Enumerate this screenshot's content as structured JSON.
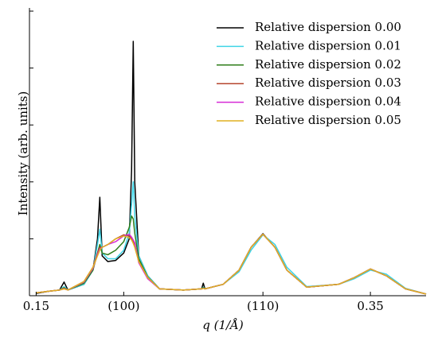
{
  "chart_data": {
    "type": "line",
    "xlabel": "q (1/Å)",
    "ylabel": "Intensity (arb. units)",
    "x": [
      0.15,
      0.158,
      0.164,
      0.1667,
      0.169,
      0.1786,
      0.184,
      0.1867,
      0.1881,
      0.1895,
      0.1929,
      0.1976,
      0.2024,
      0.2057,
      0.2071,
      0.2081,
      0.209,
      0.2114,
      0.2167,
      0.2238,
      0.2381,
      0.249,
      0.25,
      0.251,
      0.2619,
      0.2714,
      0.2786,
      0.2857,
      0.2929,
      0.3,
      0.3119,
      0.331,
      0.3405,
      0.35,
      0.3595,
      0.371,
      0.3833
    ],
    "series": [
      {
        "name": "Relative dispersion 0.00",
        "color": "#000000",
        "values": [
          0.04,
          0.08,
          0.1,
          0.24,
          0.1,
          0.2,
          0.45,
          1.0,
          1.73,
          0.7,
          0.6,
          0.62,
          0.75,
          1.0,
          2.2,
          4.47,
          2.0,
          0.7,
          0.35,
          0.12,
          0.1,
          0.12,
          0.22,
          0.12,
          0.2,
          0.45,
          0.85,
          1.09,
          0.85,
          0.45,
          0.15,
          0.2,
          0.32,
          0.47,
          0.35,
          0.12,
          0.03
        ]
      },
      {
        "name": "Relative dispersion 0.01",
        "color": "#3fd4e6",
        "values": [
          0.05,
          0.08,
          0.1,
          0.16,
          0.1,
          0.2,
          0.45,
          0.9,
          1.17,
          0.75,
          0.65,
          0.65,
          0.8,
          1.1,
          1.6,
          2.0,
          1.4,
          0.7,
          0.35,
          0.12,
          0.1,
          0.12,
          0.15,
          0.12,
          0.2,
          0.42,
          0.8,
          1.07,
          0.9,
          0.5,
          0.16,
          0.2,
          0.3,
          0.45,
          0.38,
          0.13,
          0.03
        ]
      },
      {
        "name": "Relative dispersion 0.02",
        "color": "#2e7d1a",
        "values": [
          0.05,
          0.08,
          0.1,
          0.14,
          0.1,
          0.22,
          0.45,
          0.75,
          0.9,
          0.75,
          0.72,
          0.8,
          0.95,
          1.2,
          1.4,
          1.35,
          1.1,
          0.65,
          0.33,
          0.12,
          0.1,
          0.12,
          0.14,
          0.12,
          0.2,
          0.45,
          0.85,
          1.08,
          0.85,
          0.45,
          0.15,
          0.2,
          0.32,
          0.47,
          0.35,
          0.12,
          0.03
        ]
      },
      {
        "name": "Relative dispersion 0.03",
        "color": "#b5452e",
        "values": [
          0.05,
          0.08,
          0.1,
          0.13,
          0.1,
          0.25,
          0.5,
          0.75,
          0.85,
          0.85,
          0.9,
          1.0,
          1.07,
          1.05,
          1.0,
          0.95,
          0.88,
          0.6,
          0.32,
          0.12,
          0.1,
          0.12,
          0.13,
          0.12,
          0.2,
          0.45,
          0.85,
          1.08,
          0.85,
          0.45,
          0.15,
          0.2,
          0.32,
          0.47,
          0.35,
          0.12,
          0.03
        ]
      },
      {
        "name": "Relative dispersion 0.04",
        "color": "#d62ad6",
        "values": [
          0.05,
          0.08,
          0.1,
          0.12,
          0.1,
          0.24,
          0.48,
          0.72,
          0.82,
          0.85,
          0.9,
          0.95,
          1.05,
          1.08,
          1.03,
          0.98,
          0.93,
          0.58,
          0.3,
          0.12,
          0.1,
          0.12,
          0.13,
          0.12,
          0.2,
          0.45,
          0.85,
          1.08,
          0.85,
          0.45,
          0.15,
          0.2,
          0.32,
          0.47,
          0.35,
          0.12,
          0.03
        ]
      },
      {
        "name": "Relative dispersion 0.05",
        "color": "#e0b020",
        "values": [
          0.05,
          0.08,
          0.1,
          0.12,
          0.1,
          0.25,
          0.5,
          0.7,
          0.8,
          0.85,
          0.9,
          1.0,
          1.05,
          1.02,
          0.98,
          0.92,
          0.85,
          0.6,
          0.32,
          0.12,
          0.1,
          0.12,
          0.13,
          0.12,
          0.2,
          0.45,
          0.85,
          1.08,
          0.85,
          0.45,
          0.15,
          0.2,
          0.32,
          0.47,
          0.35,
          0.12,
          0.03
        ]
      }
    ],
    "xlim": [
      0.146,
      0.3833
    ],
    "xticks": [
      0.15,
      {
        "value": 0.2024,
        "label": "(100)"
      },
      {
        "value": 0.2857,
        "label": "(110)"
      },
      0.35
    ],
    "ylim": [
      0,
      5
    ],
    "yticks": [
      0,
      1,
      2,
      3,
      4,
      5
    ],
    "legend": "upper right"
  }
}
